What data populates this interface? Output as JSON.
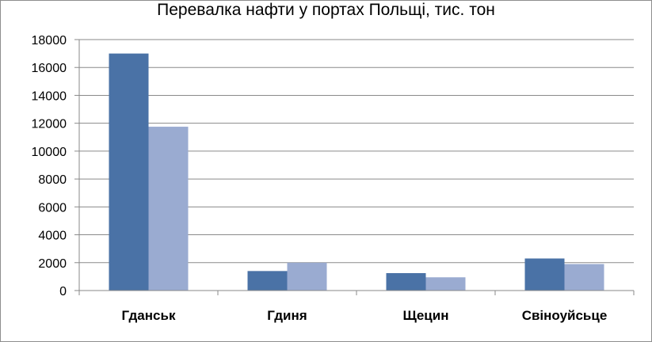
{
  "chart_data": {
    "type": "bar",
    "title": "Перевалка нафти у портах Польщі, тис. тон",
    "categories": [
      "Гданськ",
      "Гдиня",
      "Щецин",
      "Свіноуйсьце"
    ],
    "series": [
      {
        "values": [
          17000,
          1400,
          1250,
          2300
        ],
        "color": "#4a72a6"
      },
      {
        "values": [
          11750,
          2000,
          950,
          1900
        ],
        "color": "#9aabd1"
      }
    ],
    "ylim": [
      0,
      18000
    ],
    "yticks": [
      "0",
      "2000",
      "4000",
      "6000",
      "8000",
      "10000",
      "12000",
      "14000",
      "16000",
      "18000"
    ],
    "grid": true,
    "legend": "none"
  }
}
